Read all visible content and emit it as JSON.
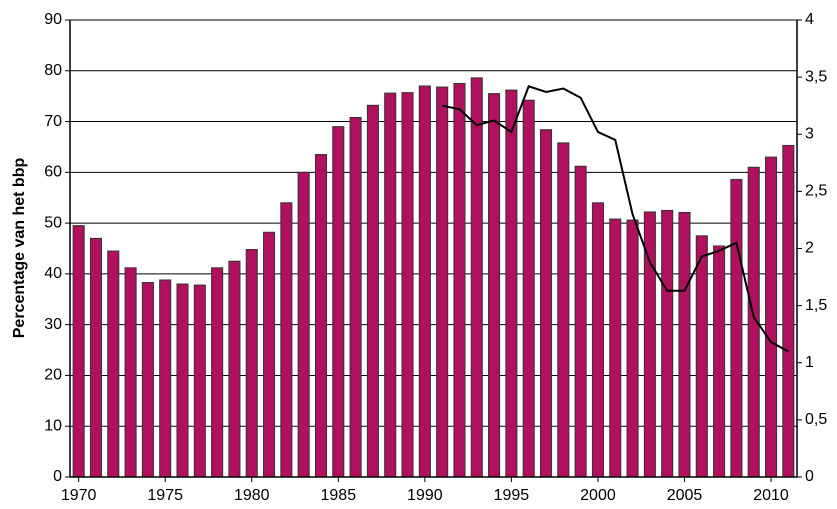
{
  "chart_data": {
    "type": "bar",
    "y_label": "Percentage van het bbp",
    "x": [
      1970,
      1971,
      1972,
      1973,
      1974,
      1975,
      1976,
      1977,
      1978,
      1979,
      1980,
      1981,
      1982,
      1983,
      1984,
      1985,
      1986,
      1987,
      1988,
      1989,
      1990,
      1991,
      1992,
      1993,
      1994,
      1995,
      1996,
      1997,
      1998,
      1999,
      2000,
      2001,
      2002,
      2003,
      2004,
      2005,
      2006,
      2007,
      2008,
      2009,
      2010,
      2011
    ],
    "xlim": [
      1969.5,
      2011.5
    ],
    "xticks": [
      1970,
      1975,
      1980,
      1985,
      1990,
      1995,
      2000,
      2005,
      2010
    ],
    "ylim": [
      0,
      90
    ],
    "yticks": [
      0,
      10,
      20,
      30,
      40,
      50,
      60,
      70,
      80,
      90
    ],
    "y2lim": [
      0,
      4
    ],
    "y2ticks": [
      0,
      {
        "value": 0.5,
        "label": "0,5"
      },
      1,
      {
        "value": 1.5,
        "label": "1,5"
      },
      2,
      {
        "value": 2.5,
        "label": "2,5"
      },
      3,
      {
        "value": 3.5,
        "label": "3,5"
      },
      4
    ],
    "grid": true,
    "series": [
      {
        "type": "bar",
        "color": "#b0105e",
        "values": [
          49.5,
          47,
          44.5,
          41.2,
          38.3,
          38.8,
          38,
          37.8,
          41.2,
          42.5,
          44.8,
          48.2,
          54,
          60,
          63.5,
          69,
          70.8,
          73.2,
          75.6,
          75.7,
          77,
          76.8,
          77.5,
          78.6,
          75.5,
          76.2,
          74.2,
          68.4,
          65.8,
          61.2,
          54,
          50.8,
          50.6,
          52.2,
          52.5,
          52.1,
          47.5,
          45.5,
          58.6,
          61,
          63,
          65.3
        ]
      },
      {
        "type": "line",
        "axis": "y2",
        "color": "#000000",
        "values": [
          null,
          null,
          null,
          null,
          null,
          null,
          null,
          null,
          null,
          null,
          null,
          null,
          null,
          null,
          null,
          null,
          null,
          null,
          null,
          null,
          null,
          3.25,
          3.22,
          3.08,
          3.12,
          3.02,
          3.42,
          3.37,
          3.4,
          3.32,
          3.02,
          2.95,
          2.3,
          1.88,
          1.63,
          1.63,
          1.93,
          1.98,
          2.05,
          1.4,
          1.18,
          1.1
        ]
      }
    ]
  }
}
